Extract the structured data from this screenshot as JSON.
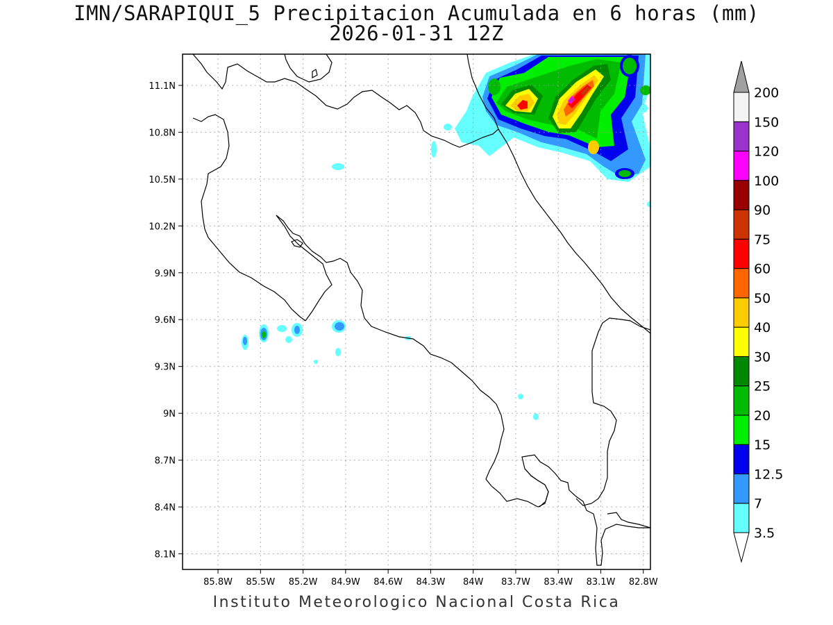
{
  "title": {
    "line1": "IMN/SARAPIQUI_5 Precipitacion Acumulada en 6 horas (mm)",
    "line2": "2026-01-31 12Z"
  },
  "map": {
    "lat_ticks": [
      "11.1N",
      "10.8N",
      "10.5N",
      "10.2N",
      "9.9N",
      "9.6N",
      "9.3N",
      "9N",
      "8.7N",
      "8.4N",
      "8.1N"
    ],
    "lon_ticks": [
      "85.8W",
      "85.5W",
      "85.2W",
      "84.9W",
      "84.6W",
      "84.3W",
      "84W",
      "83.7W",
      "83.4W",
      "83.1W",
      "82.8W"
    ],
    "lat_range": [
      8.0,
      11.3
    ],
    "lon_range": [
      -86.05,
      -82.75
    ],
    "grid": true
  },
  "colorbar": {
    "labels": [
      "3.5",
      "7",
      "12.5",
      "15",
      "20",
      "25",
      "30",
      "40",
      "50",
      "60",
      "75",
      "90",
      "100",
      "120",
      "150",
      "200"
    ],
    "colors": [
      "#66ffff",
      "#3399ff",
      "#0000ee",
      "#00ee00",
      "#00bb00",
      "#008800",
      "#ffff00",
      "#ffcc00",
      "#ff6600",
      "#ff0000",
      "#cc3300",
      "#990000",
      "#ff00ff",
      "#9933cc",
      "#f4f4f4",
      "#a0a0a0"
    ]
  },
  "footer": "Instituto Meteorologico Nacional Costa Rica"
}
